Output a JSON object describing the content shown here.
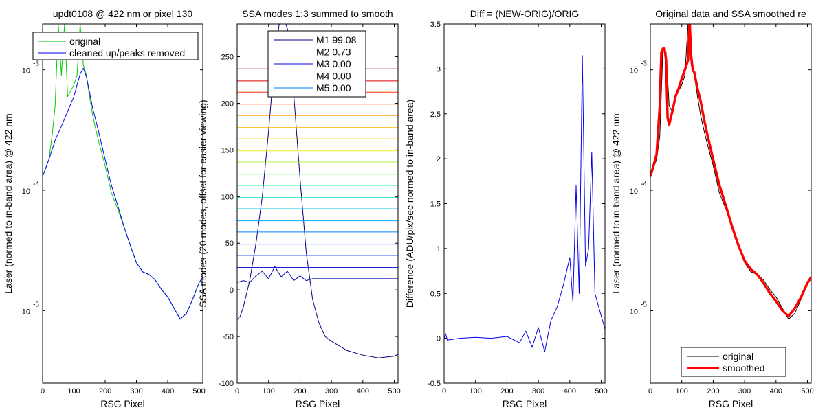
{
  "chart_data": [
    {
      "type": "line",
      "title": "updt0108 @ 422 nm or pixel 130",
      "xlabel": "RSG Pixel",
      "ylabel": "Laser (normed to in-band area) @ 422 nm",
      "xlim": [
        0,
        512
      ],
      "ylim": [
        2.5e-06,
        0.0024
      ],
      "yscale": "log",
      "xticks": [
        "0",
        "100",
        "200",
        "300",
        "400",
        "500"
      ],
      "yticks": [
        {
          "value": 1e-05,
          "base": "10",
          "exp": "-5"
        },
        {
          "value": 0.0001,
          "base": "10",
          "exp": "-4"
        },
        {
          "value": 0.001,
          "base": "10",
          "exp": "-3"
        }
      ],
      "legend_position": "top",
      "series": [
        {
          "name": "original",
          "color": "#00cc00",
          "x": [
            0,
            20,
            30,
            40,
            50,
            60,
            70,
            80,
            100,
            110,
            120,
            130,
            140,
            150,
            160,
            170,
            180,
            200,
            220,
            240,
            260,
            280,
            300,
            320,
            340,
            360,
            380,
            400,
            420,
            440,
            460,
            480,
            500,
            512
          ],
          "y": [
            0.00013,
            0.00018,
            0.00028,
            0.0005,
            0.0024,
            0.0009,
            0.0024,
            0.0006,
            0.00075,
            0.0009,
            0.0024,
            0.0011,
            0.0009,
            0.0006,
            0.00042,
            0.00032,
            0.00025,
            0.00016,
            9.5e-05,
            7e-05,
            5e-05,
            3.5e-05,
            2.5e-05,
            2.1e-05,
            2e-05,
            1.8e-05,
            1.5e-05,
            1.3e-05,
            1.05e-05,
            8.5e-06,
            9.5e-06,
            1.25e-05,
            1.7e-05,
            1.9e-05
          ]
        },
        {
          "name": "cleaned up/peaks removed",
          "color": "#0000ee",
          "x": [
            0,
            20,
            40,
            60,
            80,
            100,
            110,
            120,
            130,
            140,
            150,
            160,
            170,
            180,
            200,
            220,
            240,
            260,
            280,
            300,
            320,
            340,
            360,
            380,
            400,
            420,
            440,
            460,
            480,
            500,
            512
          ],
          "y": [
            0.00013,
            0.00018,
            0.00026,
            0.00034,
            0.00045,
            0.0006,
            0.00075,
            0.00092,
            0.00103,
            0.00088,
            0.00065,
            0.00048,
            0.00038,
            0.0003,
            0.00018,
            0.00011,
            7.5e-05,
            5e-05,
            3.5e-05,
            2.5e-05,
            2.1e-05,
            2e-05,
            1.8e-05,
            1.5e-05,
            1.3e-05,
            1.05e-05,
            8.5e-06,
            9.5e-06,
            1.25e-05,
            1.7e-05,
            1.9e-05
          ]
        }
      ]
    },
    {
      "type": "line",
      "title": "SSA modes 1:3 summed to smooth",
      "xlabel": "RSG Pixel",
      "ylabel": "SSA modes (20 modes, offset for easier viewing)",
      "xlim": [
        0,
        512
      ],
      "ylim": [
        -100,
        285
      ],
      "xticks": [
        "0",
        "100",
        "200",
        "300",
        "400",
        "500"
      ],
      "yticks": [
        "-100",
        "-50",
        "0",
        "50",
        "100",
        "150",
        "200",
        "250"
      ],
      "legend_position": "top",
      "legend": [
        {
          "label": "M1 99.08",
          "color": "#000080"
        },
        {
          "label": "M2 0.73",
          "color": "#0000b0"
        },
        {
          "label": "M3 0.00",
          "color": "#0000e0"
        },
        {
          "label": "M4 0.00",
          "color": "#0040ff"
        },
        {
          "label": "M5 0.00",
          "color": "#0080ff"
        }
      ],
      "modes": [
        {
          "offset": 0,
          "color": "#000080",
          "x": [
            0,
            10,
            20,
            40,
            60,
            80,
            100,
            120,
            140,
            160,
            180,
            200,
            220,
            240,
            260,
            280,
            300,
            350,
            400,
            450,
            500,
            512
          ],
          "y": [
            -32,
            -28,
            -18,
            10,
            50,
            100,
            170,
            250,
            300,
            280,
            210,
            120,
            40,
            -10,
            -35,
            -50,
            -55,
            -65,
            -70,
            -73,
            -71,
            -69
          ]
        },
        {
          "offset": 0,
          "color": "#0000b0",
          "x": [
            0,
            20,
            40,
            60,
            80,
            100,
            120,
            140,
            160,
            180,
            200,
            220,
            240,
            260,
            512
          ],
          "y": [
            8,
            10,
            8,
            15,
            20,
            12,
            25,
            14,
            20,
            10,
            15,
            10,
            12,
            12,
            12
          ]
        },
        {
          "offset": 24,
          "color": "#0000e0",
          "x": [
            0,
            512
          ],
          "y": [
            0,
            0
          ]
        },
        {
          "offset": 37,
          "color": "#0020f0",
          "x": [
            0,
            512
          ],
          "y": [
            0,
            0
          ]
        },
        {
          "offset": 49,
          "color": "#0050ff",
          "x": [
            0,
            512
          ],
          "y": [
            0,
            0
          ]
        },
        {
          "offset": 62,
          "color": "#0080ff",
          "x": [
            0,
            512
          ],
          "y": [
            0,
            0
          ]
        },
        {
          "offset": 74,
          "color": "#00a8ff",
          "x": [
            0,
            512
          ],
          "y": [
            0,
            0
          ]
        },
        {
          "offset": 87,
          "color": "#00ccee",
          "x": [
            0,
            512
          ],
          "y": [
            0,
            0
          ]
        },
        {
          "offset": 99,
          "color": "#00e0cc",
          "x": [
            0,
            512
          ],
          "y": [
            0,
            0
          ]
        },
        {
          "offset": 112,
          "color": "#20f0a0",
          "x": [
            0,
            512
          ],
          "y": [
            0,
            0
          ]
        },
        {
          "offset": 124,
          "color": "#70f070",
          "x": [
            0,
            512
          ],
          "y": [
            0,
            0
          ]
        },
        {
          "offset": 137,
          "color": "#b0f040",
          "x": [
            0,
            512
          ],
          "y": [
            0,
            0
          ]
        },
        {
          "offset": 149,
          "color": "#e8f020",
          "x": [
            0,
            512
          ],
          "y": [
            0,
            0
          ]
        },
        {
          "offset": 162,
          "color": "#ffd000",
          "x": [
            0,
            512
          ],
          "y": [
            0,
            0
          ]
        },
        {
          "offset": 174,
          "color": "#ffb000",
          "x": [
            0,
            512
          ],
          "y": [
            0,
            0
          ]
        },
        {
          "offset": 187,
          "color": "#ff8c00",
          "x": [
            0,
            512
          ],
          "y": [
            0,
            0
          ]
        },
        {
          "offset": 199,
          "color": "#ff6000",
          "x": [
            0,
            512
          ],
          "y": [
            0,
            0
          ]
        },
        {
          "offset": 212,
          "color": "#ff3000",
          "x": [
            0,
            512
          ],
          "y": [
            0,
            0
          ]
        },
        {
          "offset": 224,
          "color": "#e00000",
          "x": [
            0,
            512
          ],
          "y": [
            0,
            0
          ]
        },
        {
          "offset": 237,
          "color": "#b00000",
          "x": [
            0,
            512
          ],
          "y": [
            0,
            0
          ]
        }
      ]
    },
    {
      "type": "line",
      "title": "Diff = (NEW-ORIG)/ORIG",
      "xlabel": "RSG Pixel",
      "ylabel": "Difference (ADU/pix/sec normed to in-band area)",
      "xlim": [
        0,
        512
      ],
      "ylim": [
        -0.5,
        3.5
      ],
      "xticks": [
        "0",
        "100",
        "200",
        "300",
        "400",
        "500"
      ],
      "yticks": [
        "-0.5",
        "0",
        "0.5",
        "1",
        "1.5",
        "2",
        "2.5",
        "3",
        "3.5"
      ],
      "series": [
        {
          "name": "",
          "color": "#0000ee",
          "x": [
            0,
            5,
            10,
            50,
            100,
            150,
            200,
            240,
            260,
            280,
            300,
            320,
            340,
            360,
            380,
            400,
            410,
            420,
            430,
            440,
            450,
            460,
            470,
            480,
            500,
            512
          ],
          "y": [
            0,
            0.05,
            -0.02,
            0,
            0.01,
            0,
            0.02,
            -0.05,
            0.08,
            -0.1,
            0.12,
            -0.15,
            0.2,
            0.35,
            0.6,
            0.9,
            0.4,
            1.7,
            0.5,
            3.15,
            0.8,
            1.0,
            2.07,
            0.5,
            0.25,
            0.1
          ]
        }
      ]
    },
    {
      "type": "line",
      "title": "Original data and SSA smoothed re",
      "xlabel": "RSG Pixel",
      "ylabel": "Laser (normed to in-band area) @ 422 nm",
      "xlim": [
        0,
        512
      ],
      "ylim": [
        2.5e-06,
        0.0024
      ],
      "yscale": "log",
      "xticks": [
        "0",
        "100",
        "200",
        "300",
        "400",
        "500"
      ],
      "yticks": [
        {
          "value": 1e-05,
          "base": "10",
          "exp": "-5"
        },
        {
          "value": 0.0001,
          "base": "10",
          "exp": "-4"
        },
        {
          "value": 0.001,
          "base": "10",
          "exp": "-3"
        }
      ],
      "legend_position": "bottom",
      "series": [
        {
          "name": "original",
          "color": "#000000",
          "x": [
            0,
            20,
            30,
            40,
            50,
            60,
            70,
            80,
            100,
            110,
            120,
            130,
            140,
            150,
            160,
            170,
            180,
            200,
            220,
            240,
            260,
            280,
            300,
            320,
            340,
            360,
            380,
            400,
            420,
            440,
            460,
            480,
            500,
            512
          ],
          "y": [
            0.00013,
            0.00018,
            0.00028,
            0.0015,
            0.0014,
            0.0005,
            0.00045,
            0.0006,
            0.00075,
            0.0009,
            0.0024,
            0.0011,
            0.0009,
            0.0006,
            0.00042,
            0.00032,
            0.00025,
            0.00016,
            9.5e-05,
            7e-05,
            5e-05,
            3.5e-05,
            2.5e-05,
            2.1e-05,
            2e-05,
            1.8e-05,
            1.5e-05,
            1.3e-05,
            1.05e-05,
            8.5e-06,
            9.5e-06,
            1.25e-05,
            1.7e-05,
            1.9e-05
          ]
        },
        {
          "name": "smoothed",
          "color": "#ff0000",
          "x": [
            0,
            10,
            20,
            30,
            35,
            40,
            45,
            50,
            55,
            60,
            65,
            70,
            80,
            90,
            100,
            110,
            120,
            125,
            130,
            135,
            140,
            150,
            160,
            170,
            180,
            200,
            220,
            240,
            260,
            280,
            300,
            320,
            340,
            360,
            380,
            400,
            420,
            440,
            460,
            480,
            500,
            512
          ],
          "y": [
            0.00013,
            0.00016,
            0.0002,
            0.0005,
            0.0014,
            0.0015,
            0.0015,
            0.0012,
            0.0004,
            0.00035,
            0.0004,
            0.00045,
            0.0006,
            0.0007,
            0.00085,
            0.001,
            0.0012,
            0.0026,
            0.0013,
            0.001,
            0.00095,
            0.0007,
            0.00055,
            0.0004,
            0.0003,
            0.00018,
            0.00011,
            7.5e-05,
            5e-05,
            3.5e-05,
            2.6e-05,
            2.2e-05,
            2e-05,
            1.7e-05,
            1.4e-05,
            1.2e-05,
            1e-05,
            9e-06,
            1.05e-05,
            1.3e-05,
            1.7e-05,
            1.9e-05
          ]
        }
      ]
    }
  ]
}
